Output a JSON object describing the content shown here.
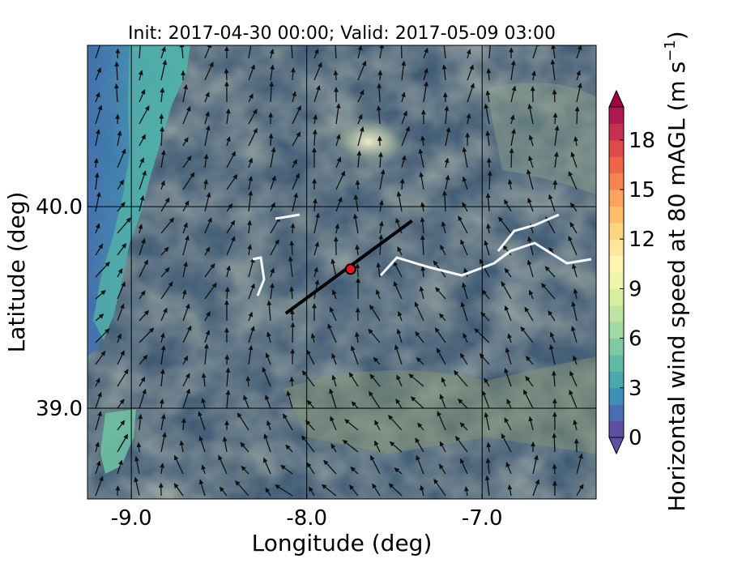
{
  "chart_data": {
    "type": "heatmap",
    "title": "Init: 2017-04-30 00:00; Valid: 2017-05-09 03:00",
    "xlabel": "Longitude (deg)",
    "ylabel": "Latitude (deg)",
    "xlim": [
      -9.25,
      -6.35
    ],
    "ylim": [
      38.55,
      40.8
    ],
    "xticks": [
      -9.0,
      -8.0,
      -7.0
    ],
    "xtick_labels": [
      "-9.0",
      "-8.0",
      "-7.0"
    ],
    "yticks": [
      39.0,
      40.0
    ],
    "ytick_labels": [
      "39.0",
      "40.0"
    ],
    "grid": true,
    "field": "Horizontal wind speed at 80 mAGL",
    "colorbar": {
      "label": "Horizontal wind speed at 80 mAGL (m s",
      "label_sup": "−1",
      "label_end": ")",
      "min": 0,
      "max": 20,
      "step": 1,
      "ticks": [
        0,
        3,
        6,
        9,
        12,
        15,
        18
      ],
      "extend": "both",
      "colors": [
        "#5e4fa2",
        "#4a6fb0",
        "#3e90b8",
        "#4aa8b0",
        "#5fbaa6",
        "#7fcaa2",
        "#a0d9a3",
        "#bde4a0",
        "#d8ef9f",
        "#eef7a8",
        "#fdf5b0",
        "#fee79a",
        "#fed382",
        "#fdbd6b",
        "#fca45e",
        "#f8844f",
        "#ee6445",
        "#dd4a4b",
        "#c73050",
        "#ad1850"
      ],
      "under_color": "#5e4fa2",
      "over_color": "#9e0142"
    },
    "cross_section": {
      "start": [
        -8.12,
        39.47
      ],
      "end": [
        -7.4,
        39.93
      ]
    },
    "point": {
      "lon": -7.75,
      "lat": 39.69,
      "color": "#e8161b"
    }
  }
}
